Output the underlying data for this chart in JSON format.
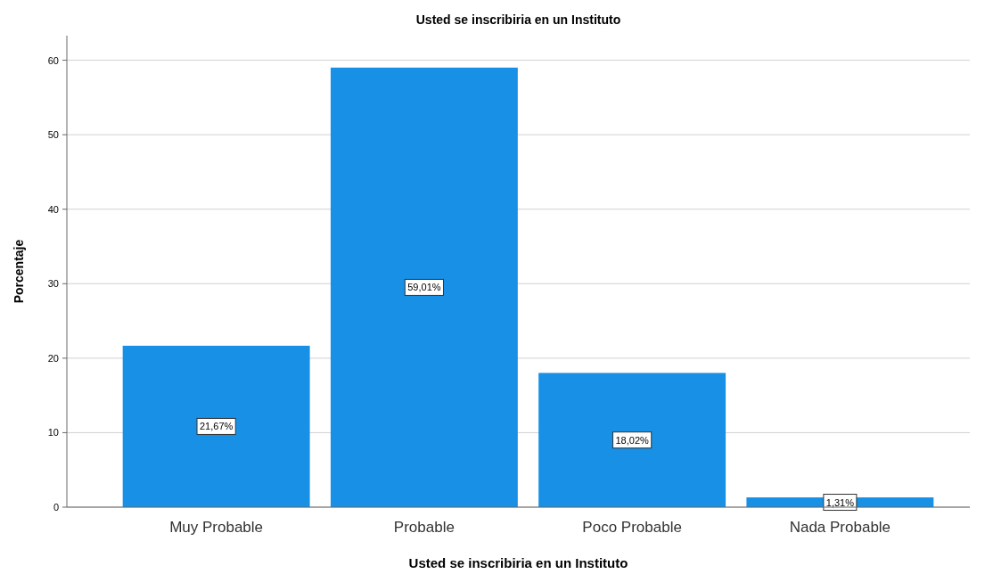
{
  "chart_data": {
    "type": "bar",
    "title": "Usted se inscribiria en un Instituto",
    "xlabel": "Usted se inscribiria en un Instituto",
    "ylabel": "Porcentaje",
    "categories": [
      "Muy Probable",
      "Probable",
      "Poco Probable",
      "Nada Probable"
    ],
    "values": [
      21.67,
      59.01,
      18.02,
      1.31
    ],
    "value_labels": [
      "21,67%",
      "59,01%",
      "18,02%",
      "1,31%"
    ],
    "color": "#1790e6",
    "ylim": [
      0,
      63.3
    ],
    "yticks": [
      0,
      10,
      20,
      30,
      40,
      50,
      60
    ],
    "grid": "y"
  }
}
